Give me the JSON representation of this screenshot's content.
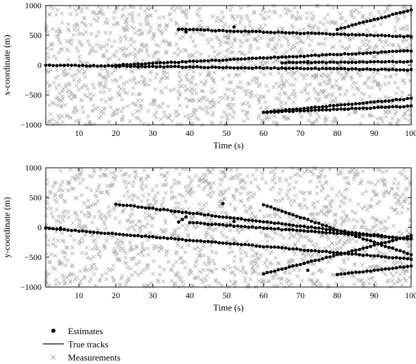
{
  "chart_data": [
    {
      "type": "scatter",
      "xlabel": "Time (s)",
      "ylabel": "x-coordinate (m)",
      "xlim": [
        1,
        100
      ],
      "ylim": [
        -1000,
        1000
      ],
      "xticks": [
        "10",
        "20",
        "30",
        "40",
        "50",
        "60",
        "70",
        "80",
        "90",
        "100"
      ],
      "yticks": [
        "1000",
        "500",
        "0",
        "−500",
        "−1000"
      ],
      "clutter": {
        "count": 1500,
        "range_x": [
          1,
          100
        ],
        "range_y": [
          -1000,
          1000
        ]
      },
      "tracks": [
        {
          "t0": 1,
          "t1": 100,
          "y0": 0,
          "y1": -80
        },
        {
          "t0": 20,
          "t1": 100,
          "y0": 0,
          "y1": 240
        },
        {
          "t0": 37,
          "t1": 100,
          "y0": 600,
          "y1": 480
        },
        {
          "t0": 60,
          "t1": 100,
          "y0": -790,
          "y1": -560
        },
        {
          "t0": 60,
          "t1": 100,
          "y0": -790,
          "y1": -690
        },
        {
          "t0": 80,
          "t1": 100,
          "y0": 600,
          "y1": 930
        },
        {
          "t0": 65,
          "t1": 100,
          "y0": 40,
          "y1": 60
        }
      ],
      "outliers": [
        [
          37,
          600
        ],
        [
          39,
          560
        ],
        [
          52,
          640
        ],
        [
          66,
          -60
        ],
        [
          72,
          60
        ],
        [
          26,
          -30
        ]
      ]
    },
    {
      "type": "scatter",
      "xlabel": "Time (s)",
      "ylabel": "y-coordinate (m)",
      "xlim": [
        1,
        100
      ],
      "ylim": [
        -1000,
        1000
      ],
      "xticks": [
        "10",
        "20",
        "30",
        "40",
        "50",
        "60",
        "70",
        "80",
        "90",
        "100"
      ],
      "yticks": [
        "1000",
        "500",
        "0",
        "−500",
        "−1000"
      ],
      "clutter": {
        "count": 1500,
        "range_x": [
          1,
          100
        ],
        "range_y": [
          -1000,
          1000
        ]
      },
      "tracks": [
        {
          "t0": 1,
          "t1": 100,
          "y0": -10,
          "y1": -530
        },
        {
          "t0": 20,
          "t1": 100,
          "y0": 390,
          "y1": -200
        },
        {
          "t0": 40,
          "t1": 100,
          "y0": 80,
          "y1": -190
        },
        {
          "t0": 60,
          "t1": 100,
          "y0": 380,
          "y1": -460
        },
        {
          "t0": 60,
          "t1": 100,
          "y0": -780,
          "y1": -140
        },
        {
          "t0": 80,
          "t1": 100,
          "y0": -790,
          "y1": -650
        },
        {
          "t0": 37,
          "t1": 39,
          "y0": 90,
          "y1": 180
        }
      ],
      "outliers": [
        [
          49,
          400
        ],
        [
          52,
          100
        ],
        [
          72,
          -720
        ],
        [
          5,
          -10
        ]
      ]
    }
  ],
  "legend": {
    "items": [
      {
        "label": "Estimates",
        "marker": "dot"
      },
      {
        "label": "True tracks",
        "marker": "line"
      },
      {
        "label": "Measurements",
        "marker": "cross"
      }
    ]
  },
  "colors": {
    "measurement": "#b3b3b3",
    "estimate": "#000000",
    "track": "#000000"
  }
}
